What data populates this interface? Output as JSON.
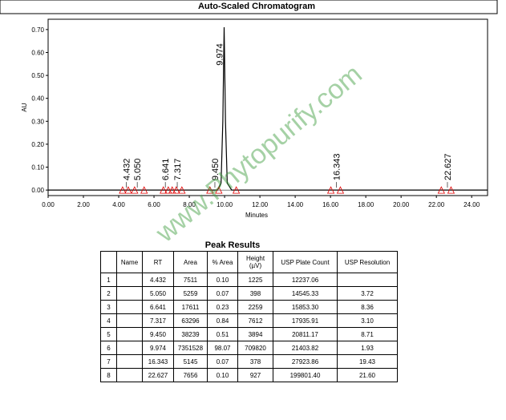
{
  "chart_data": {
    "type": "line",
    "title": "Auto-Scaled Chromatogram",
    "x_label": "Minutes",
    "y_label": "AU",
    "x": [
      0,
      9.6,
      9.8,
      9.9,
      9.974,
      10.05,
      10.15,
      10.4,
      24.9
    ],
    "values": [
      0,
      0,
      0.03,
      0.3,
      0.71,
      0.3,
      0.03,
      0,
      0
    ],
    "color": "#000000",
    "xlim": [
      0,
      24.9
    ],
    "ylim": [
      -0.024,
      0.745
    ],
    "xticks": [
      {
        "value": 0,
        "label": "0.00"
      },
      {
        "value": 2,
        "label": "2.00"
      },
      {
        "value": 4,
        "label": "4.00"
      },
      {
        "value": 6,
        "label": "6.00"
      },
      {
        "value": 8,
        "label": "8.00"
      },
      {
        "value": 10,
        "label": "10.00"
      },
      {
        "value": 12,
        "label": "12.00"
      },
      {
        "value": 14,
        "label": "14.00"
      },
      {
        "value": 16,
        "label": "16.00"
      },
      {
        "value": 18,
        "label": "18.00"
      },
      {
        "value": 20,
        "label": "20.00"
      },
      {
        "value": 22,
        "label": "22.00"
      },
      {
        "value": 24,
        "label": "24.00"
      }
    ],
    "yticks": [
      {
        "value": 0,
        "label": "0.00"
      },
      {
        "value": 0.1,
        "label": "0.10"
      },
      {
        "value": 0.2,
        "label": "0.20"
      },
      {
        "value": 0.3,
        "label": "0.30"
      },
      {
        "value": 0.4,
        "label": "0.40"
      },
      {
        "value": 0.5,
        "label": "0.50"
      },
      {
        "value": 0.6,
        "label": "0.60"
      },
      {
        "value": 0.7,
        "label": "0.70"
      }
    ],
    "grid": false,
    "peak_labels": [
      {
        "x": 4.432,
        "text": "4.432"
      },
      {
        "x": 5.05,
        "text": "5.050"
      },
      {
        "x": 6.641,
        "text": "6.641"
      },
      {
        "x": 7.317,
        "text": "7.317"
      },
      {
        "x": 9.45,
        "text": "9.450"
      },
      {
        "x": 9.974,
        "text": "9.974"
      },
      {
        "x": 16.343,
        "text": "16.343"
      },
      {
        "x": 22.627,
        "text": "22.627"
      }
    ],
    "event_markers": {
      "color": "#e00000",
      "x": [
        4.22,
        4.54,
        4.9,
        5.44,
        6.53,
        6.81,
        7.03,
        7.26,
        7.58,
        9.17,
        9.67,
        10.66,
        16.02,
        16.56,
        22.28,
        22.83
      ]
    },
    "watermark": "www.Phytopurify.com"
  },
  "table": {
    "title": "Peak Results",
    "header": [
      "",
      "Name",
      "RT",
      "Area",
      "% Area",
      "Height (µV)",
      "USP Plate Count",
      "USP Resolution"
    ],
    "rows": [
      [
        "1",
        "",
        "4.432",
        "7511",
        "0.10",
        "1225",
        "12237.06",
        ""
      ],
      [
        "2",
        "",
        "5.050",
        "5259",
        "0.07",
        "398",
        "14545.33",
        "3.72"
      ],
      [
        "3",
        "",
        "6.641",
        "17611",
        "0.23",
        "2259",
        "15853.30",
        "8.36"
      ],
      [
        "4",
        "",
        "7.317",
        "63296",
        "0.84",
        "7612",
        "17935.91",
        "3.10"
      ],
      [
        "5",
        "",
        "9.450",
        "38239",
        "0.51",
        "3894",
        "20811.17",
        "8.71"
      ],
      [
        "6",
        "",
        "9.974",
        "7351528",
        "98.07",
        "709820",
        "21403.82",
        "1.93"
      ],
      [
        "7",
        "",
        "16.343",
        "5145",
        "0.07",
        "378",
        "27923.86",
        "19.43"
      ],
      [
        "8",
        "",
        "22.627",
        "7656",
        "0.10",
        "927",
        "199801.40",
        "21.60"
      ]
    ]
  }
}
